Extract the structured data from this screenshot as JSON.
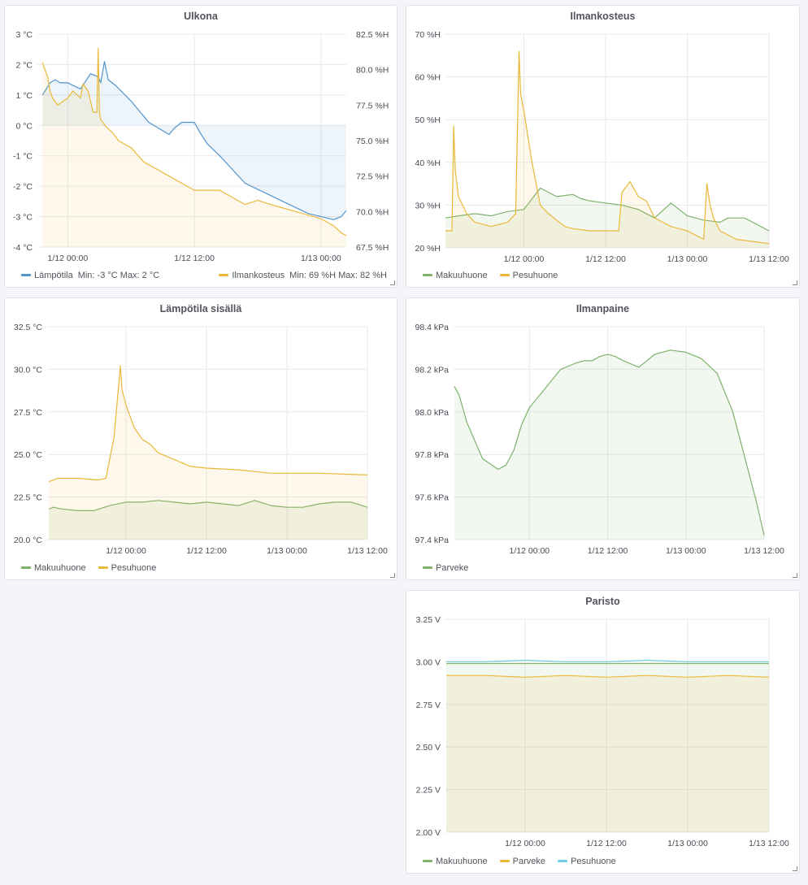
{
  "chart_data": [
    {
      "id": "ulkona",
      "type": "line",
      "title": "Ulkona",
      "x_ticks": [
        "1/12 00:00",
        "1/12 12:00",
        "1/13 00:00",
        "1/13 12:00"
      ],
      "y_ticks": [
        "3 °C",
        "2 °C",
        "1 °C",
        "0 °C",
        "-1 °C",
        "-2 °C",
        "-3 °C",
        "-4 °C"
      ],
      "y2_ticks": [
        "82.5 %H",
        "80.0 %H",
        "77.5 %H",
        "75.0 %H",
        "72.5 %H",
        "70.0 %H",
        "67.5 %H"
      ],
      "ylim": [
        -4,
        3
      ],
      "y2lim": [
        67.5,
        82.5
      ],
      "grid": true,
      "legend_position": "bottom",
      "series": [
        {
          "name": "Lämpötila",
          "color": "#5195ce",
          "axis": "left",
          "fill": true,
          "stats": "Min: -3 °C   Max: 2 °C",
          "x": [
            -0.1,
            -0.07,
            -0.05,
            -0.03,
            0.0,
            0.05,
            0.09,
            0.12,
            0.13,
            0.145,
            0.16,
            0.19,
            0.25,
            0.32,
            0.4,
            0.42,
            0.45,
            0.5,
            0.52,
            0.55,
            0.6,
            0.7,
            0.8,
            0.85,
            0.95,
            1.0,
            1.05,
            1.08,
            1.1
          ],
          "y": [
            1.0,
            1.4,
            1.5,
            1.4,
            1.4,
            1.2,
            1.7,
            1.6,
            1.4,
            2.1,
            1.5,
            1.3,
            0.8,
            0.1,
            -0.3,
            -0.1,
            0.1,
            0.1,
            -0.2,
            -0.6,
            -1.0,
            -1.9,
            -2.3,
            -2.5,
            -2.9,
            -3.0,
            -3.1,
            -3.0,
            -2.8
          ]
        },
        {
          "name": "Ilmankosteus",
          "color": "#eab839",
          "axis": "right",
          "fill": true,
          "stats": "Min: 69 %H   Max: 82 %H",
          "x": [
            -0.1,
            -0.08,
            -0.07,
            -0.06,
            -0.04,
            0.0,
            0.02,
            0.05,
            0.06,
            0.08,
            0.1,
            0.115,
            0.12,
            0.125,
            0.13,
            0.15,
            0.18,
            0.2,
            0.25,
            0.3,
            0.35,
            0.4,
            0.45,
            0.5,
            0.6,
            0.7,
            0.75,
            0.8,
            0.9,
            1.0,
            1.05,
            1.08,
            1.1
          ],
          "y": [
            80.5,
            79.5,
            78.5,
            78.0,
            77.5,
            78.0,
            78.5,
            78.0,
            79.0,
            78.5,
            77.0,
            77.0,
            81.5,
            77.0,
            76.5,
            76.0,
            75.5,
            75.0,
            74.5,
            73.5,
            73.0,
            72.5,
            72.0,
            71.5,
            71.5,
            70.5,
            70.8,
            70.5,
            70.0,
            69.5,
            69.0,
            68.5,
            68.3
          ]
        }
      ]
    },
    {
      "id": "ilmankosteus",
      "type": "line",
      "title": "Ilmankosteus",
      "x_ticks": [
        "1/12 00:00",
        "1/12 12:00",
        "1/13 00:00",
        "1/13 12:00"
      ],
      "y_ticks": [
        "70 %H",
        "60 %H",
        "50 %H",
        "40 %H",
        "30 %H",
        "20 %H"
      ],
      "ylim": [
        20,
        70
      ],
      "grid": true,
      "legend_position": "bottom",
      "series": [
        {
          "name": "Makuuhuone",
          "color": "#7eb26d",
          "fill": true,
          "x": [
            -0.98,
            -0.9,
            -0.8,
            -0.7,
            -0.6,
            -0.5,
            -0.4,
            -0.3,
            -0.2,
            -0.15,
            -0.1,
            0.0,
            0.1,
            0.2,
            0.3,
            0.4,
            0.5,
            0.6,
            0.7,
            0.75,
            0.8,
            0.85,
            0.9,
            1.0
          ],
          "y": [
            27.0,
            27.5,
            28.0,
            27.5,
            28.5,
            29.0,
            34.0,
            32.0,
            32.5,
            31.5,
            31.0,
            30.5,
            30.0,
            29.0,
            27.0,
            30.5,
            27.5,
            26.5,
            26.0,
            27.0,
            27.0,
            27.0,
            26.0,
            24.0
          ]
        },
        {
          "name": "Pesuhuone",
          "color": "#eab839",
          "fill": true,
          "x": [
            -0.98,
            -0.94,
            -0.93,
            -0.92,
            -0.9,
            -0.85,
            -0.8,
            -0.7,
            -0.6,
            -0.55,
            -0.53,
            -0.52,
            -0.5,
            -0.45,
            -0.4,
            -0.35,
            -0.3,
            -0.25,
            -0.2,
            -0.1,
            0.0,
            0.08,
            0.1,
            0.15,
            0.2,
            0.25,
            0.3,
            0.35,
            0.4,
            0.45,
            0.5,
            0.55,
            0.6,
            0.62,
            0.64,
            0.66,
            0.7,
            0.8,
            0.9,
            1.0
          ],
          "y": [
            24.0,
            24.0,
            48.5,
            38.0,
            32.0,
            28.0,
            26.0,
            25.0,
            26.0,
            28.0,
            66.0,
            56.0,
            52.0,
            40.0,
            30.0,
            28.0,
            26.5,
            25.0,
            24.5,
            24.0,
            24.0,
            24.0,
            33.0,
            35.5,
            32.0,
            31.0,
            27.0,
            26.0,
            25.0,
            24.5,
            24.0,
            23.0,
            22.0,
            35.0,
            30.0,
            27.0,
            24.0,
            22.0,
            21.5,
            21.0
          ]
        }
      ]
    },
    {
      "id": "lampotila",
      "type": "line",
      "title": "Lämpötila sisällä",
      "x_ticks": [
        "1/12 00:00",
        "1/12 12:00",
        "1/13 00:00",
        "1/13 12:00"
      ],
      "y_ticks": [
        "32.5 °C",
        "30.0 °C",
        "27.5 °C",
        "25.0 °C",
        "22.5 °C",
        "20.0 °C"
      ],
      "ylim": [
        20,
        32.5
      ],
      "grid": true,
      "legend_position": "bottom",
      "series": [
        {
          "name": "Makuuhuone",
          "color": "#7eb26d",
          "fill": true,
          "x": [
            -0.96,
            -0.9,
            -0.8,
            -0.6,
            -0.4,
            -0.2,
            0.0,
            0.2,
            0.4,
            0.6,
            0.8,
            1.0,
            1.2,
            1.4,
            1.6,
            1.8,
            2.0,
            2.2,
            2.4,
            2.6,
            2.8,
            3.0
          ],
          "y": [
            21.8,
            21.9,
            21.8,
            21.7,
            21.7,
            22.0,
            22.2,
            22.2,
            22.3,
            22.2,
            22.1,
            22.2,
            22.1,
            22.0,
            22.3,
            22.0,
            21.9,
            21.9,
            22.1,
            22.2,
            22.2,
            21.9
          ]
        },
        {
          "name": "Pesuhuone",
          "color": "#eab839",
          "fill": true,
          "x": [
            -0.96,
            -0.9,
            -0.85,
            -0.6,
            -0.35,
            -0.25,
            -0.15,
            -0.1,
            -0.07,
            -0.05,
            0.0,
            0.1,
            0.2,
            0.3,
            0.4,
            0.5,
            0.7,
            0.8,
            1.0,
            1.4,
            1.8,
            2.4,
            3.0
          ],
          "y": [
            23.4,
            23.5,
            23.6,
            23.6,
            23.5,
            23.6,
            26.0,
            28.6,
            30.2,
            28.8,
            27.9,
            26.6,
            25.9,
            25.6,
            25.1,
            24.9,
            24.5,
            24.3,
            24.2,
            24.1,
            23.9,
            23.9,
            23.8
          ]
        }
      ]
    },
    {
      "id": "ilmanpaine",
      "type": "line",
      "title": "Ilmanpaine",
      "x_ticks": [
        "1/12 00:00",
        "1/12 12:00",
        "1/13 00:00",
        "1/13 12:00"
      ],
      "y_ticks": [
        "98.4 kPa",
        "98.2 kPa",
        "98.0 kPa",
        "97.8 kPa",
        "97.6 kPa",
        "97.4 kPa"
      ],
      "ylim": [
        97.4,
        98.4
      ],
      "grid": true,
      "legend_position": "bottom",
      "series": [
        {
          "name": "Parveke",
          "color": "#7eb26d",
          "fill": true,
          "x": [
            -0.96,
            -0.9,
            -0.8,
            -0.6,
            -0.4,
            -0.3,
            -0.2,
            -0.1,
            0.0,
            0.2,
            0.4,
            0.6,
            0.7,
            0.8,
            0.9,
            1.0,
            1.1,
            1.2,
            1.4,
            1.6,
            1.8,
            2.0,
            2.2,
            2.4,
            2.6,
            2.8,
            2.9,
            3.0
          ],
          "y": [
            98.12,
            98.08,
            97.95,
            97.78,
            97.73,
            97.75,
            97.82,
            97.94,
            98.02,
            98.11,
            98.2,
            98.23,
            98.24,
            98.24,
            98.26,
            98.27,
            98.26,
            98.24,
            98.21,
            98.27,
            98.29,
            98.28,
            98.25,
            98.18,
            98.0,
            97.72,
            97.58,
            97.42
          ]
        }
      ]
    },
    {
      "id": "paristo",
      "type": "line",
      "title": "Paristo",
      "x_ticks": [
        "1/12 00:00",
        "1/12 12:00",
        "1/13 00:00",
        "1/13 12:00"
      ],
      "y_ticks": [
        "3.25 V",
        "3.00 V",
        "2.75 V",
        "2.50 V",
        "2.25 V",
        "2.00 V"
      ],
      "ylim": [
        2.0,
        3.25
      ],
      "grid": true,
      "legend_position": "bottom",
      "series": [
        {
          "name": "Makuuhuone",
          "color": "#7eb26d",
          "fill": true,
          "x": [
            -0.97,
            3.0
          ],
          "y": [
            2.99,
            2.99
          ]
        },
        {
          "name": "Parveke",
          "color": "#eab839",
          "fill": true,
          "x": [
            -0.97,
            -0.5,
            0.0,
            0.5,
            1.0,
            1.5,
            2.0,
            2.5,
            3.0
          ],
          "y": [
            2.92,
            2.92,
            2.91,
            2.92,
            2.91,
            2.92,
            2.91,
            2.92,
            2.91
          ]
        },
        {
          "name": "Pesuhuone",
          "color": "#6ed0e0",
          "fill": false,
          "x": [
            -0.97,
            -0.5,
            0.0,
            0.5,
            1.0,
            1.5,
            2.0,
            2.5,
            3.0
          ],
          "y": [
            3.0,
            3.0,
            3.01,
            3.0,
            3.0,
            3.01,
            3.0,
            3.0,
            3.0
          ]
        }
      ]
    }
  ]
}
